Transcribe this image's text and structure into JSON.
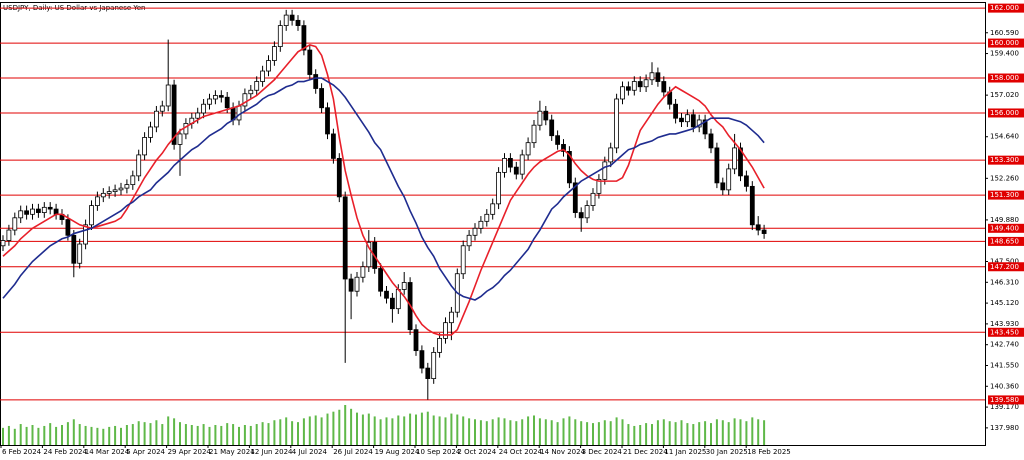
{
  "chart_data": {
    "type": "candlestick",
    "title": "USDJPY, Daily: US Dollar vs Japanese Yen",
    "x_labels": [
      "6 Feb 2024",
      "24 Feb 2024",
      "14 Mar 2024",
      "5 Apr 2024",
      "29 Apr 2024",
      "21 May 2024",
      "12 Jun 2024",
      "4 Jul 2024",
      "26 Jul 2024",
      "19 Aug 2024",
      "10 Sep 2024",
      "2 Oct 2024",
      "24 Oct 2024",
      "14 Nov 2024",
      "3 Dec 2024",
      "21 Dec 2024",
      "11 Jan 2025",
      "30 Jan 2025",
      "18 Feb 2025"
    ],
    "open": [
      148.4,
      148.7,
      149.3,
      150.0,
      150.4,
      150.2,
      150.5,
      150.3,
      150.6,
      150.5,
      150.2,
      149.9,
      149.0,
      147.4,
      148.5,
      149.6,
      150.7,
      151.2,
      151.4,
      151.5,
      151.6,
      151.7,
      151.9,
      152.4,
      153.6,
      154.6,
      155.2,
      156.1,
      156.4,
      157.6,
      154.2,
      154.8,
      155.4,
      155.7,
      156.0,
      156.5,
      156.8,
      157.0,
      156.9,
      156.3,
      155.6,
      156.4,
      157.1,
      157.3,
      157.8,
      158.4,
      159.0,
      159.8,
      161.0,
      161.6,
      161.3,
      161.0,
      159.6,
      158.2,
      157.4,
      156.3,
      154.8,
      153.4,
      151.2,
      146.5,
      145.8,
      146.6,
      147.2,
      148.6,
      147.1,
      145.8,
      145.4,
      144.8,
      145.9,
      146.3,
      143.6,
      142.4,
      141.4,
      140.8,
      142.3,
      143.1,
      144.0,
      144.6,
      146.8,
      148.4,
      149.0,
      149.4,
      149.8,
      150.2,
      150.8,
      152.6,
      153.4,
      152.9,
      152.5,
      153.6,
      154.3,
      155.3,
      156.1,
      155.6,
      154.7,
      154.2,
      153.8,
      152.0,
      150.3,
      150.0,
      150.7,
      151.4,
      152.2,
      153.2,
      154.0,
      156.8,
      157.5,
      157.3,
      157.8,
      157.5,
      157.9,
      158.3,
      157.8,
      157.2,
      156.5,
      155.7,
      155.5,
      155.9,
      155.2,
      155.6,
      154.8,
      154.0,
      152.0,
      151.6,
      152.8,
      154.0,
      152.4,
      151.8,
      149.6,
      149.3
    ],
    "high": [
      149.0,
      149.6,
      150.3,
      150.7,
      150.7,
      150.8,
      150.8,
      150.9,
      150.9,
      150.8,
      150.5,
      150.2,
      149.3,
      148.8,
      149.9,
      151.0,
      151.5,
      151.7,
      151.8,
      151.9,
      152.0,
      152.2,
      152.7,
      153.9,
      154.9,
      155.5,
      156.4,
      156.7,
      160.2,
      157.9,
      155.1,
      155.7,
      156.0,
      156.3,
      156.8,
      157.1,
      157.3,
      157.3,
      157.2,
      156.6,
      156.7,
      157.4,
      157.6,
      158.1,
      158.7,
      159.3,
      160.1,
      161.3,
      161.9,
      161.9,
      161.6,
      161.3,
      159.9,
      158.5,
      157.7,
      156.6,
      155.1,
      153.7,
      151.5,
      146.8,
      146.9,
      147.5,
      149.3,
      148.9,
      147.4,
      146.1,
      145.7,
      146.2,
      146.9,
      146.6,
      143.9,
      142.7,
      141.7,
      142.6,
      143.4,
      144.3,
      144.9,
      147.1,
      148.7,
      149.3,
      149.7,
      150.1,
      150.5,
      151.1,
      152.9,
      153.7,
      153.7,
      153.2,
      153.9,
      154.6,
      155.6,
      156.7,
      156.4,
      155.9,
      155.0,
      154.5,
      154.1,
      152.3,
      150.6,
      151.0,
      151.7,
      152.5,
      153.5,
      154.3,
      157.1,
      157.8,
      157.8,
      158.1,
      158.1,
      158.2,
      158.9,
      158.6,
      158.1,
      157.5,
      156.8,
      156.0,
      156.2,
      156.2,
      155.9,
      155.9,
      155.1,
      154.3,
      152.3,
      153.1,
      154.8,
      154.3,
      152.7,
      152.1,
      150.1,
      149.6
    ],
    "low": [
      148.1,
      148.4,
      149.0,
      149.7,
      149.9,
      149.9,
      150.0,
      150.0,
      150.2,
      149.9,
      149.6,
      148.7,
      146.6,
      147.1,
      148.2,
      149.3,
      150.4,
      150.9,
      151.1,
      151.2,
      151.3,
      151.4,
      151.6,
      152.1,
      153.3,
      154.3,
      154.9,
      155.8,
      156.1,
      153.9,
      152.4,
      154.5,
      155.1,
      155.4,
      155.7,
      156.2,
      156.5,
      156.6,
      156.0,
      155.3,
      155.3,
      156.1,
      156.8,
      157.0,
      157.5,
      158.1,
      158.7,
      159.5,
      160.7,
      161.0,
      160.7,
      159.3,
      157.9,
      157.1,
      156.0,
      154.5,
      153.1,
      150.9,
      141.7,
      144.2,
      145.5,
      146.3,
      146.9,
      146.8,
      145.5,
      145.1,
      144.0,
      144.5,
      145.6,
      143.3,
      142.1,
      141.1,
      139.6,
      140.5,
      142.0,
      142.8,
      143.0,
      144.3,
      146.5,
      148.1,
      148.7,
      149.1,
      149.5,
      149.9,
      150.5,
      152.3,
      152.6,
      152.2,
      152.2,
      153.3,
      154.0,
      155.0,
      155.3,
      154.4,
      153.9,
      153.5,
      151.7,
      150.0,
      149.2,
      149.7,
      150.4,
      151.1,
      151.9,
      152.9,
      153.7,
      156.5,
      157.0,
      157.0,
      157.2,
      157.2,
      157.6,
      157.5,
      156.9,
      156.2,
      155.4,
      155.2,
      155.2,
      154.9,
      154.9,
      154.5,
      153.7,
      151.7,
      151.3,
      151.3,
      152.5,
      152.1,
      151.5,
      149.3,
      149.0,
      148.8
    ],
    "close": [
      148.7,
      149.3,
      150.0,
      150.4,
      150.2,
      150.5,
      150.3,
      150.6,
      150.5,
      150.2,
      149.9,
      149.0,
      147.4,
      148.5,
      149.6,
      150.7,
      151.2,
      151.4,
      151.5,
      151.6,
      151.7,
      151.9,
      152.4,
      153.6,
      154.6,
      155.2,
      156.1,
      156.4,
      157.6,
      154.2,
      154.8,
      155.4,
      155.7,
      156.0,
      156.5,
      156.8,
      157.0,
      156.9,
      156.3,
      155.6,
      156.4,
      157.1,
      157.3,
      157.8,
      158.4,
      159.0,
      159.8,
      161.0,
      161.6,
      161.3,
      161.0,
      159.6,
      158.2,
      157.4,
      156.3,
      154.8,
      153.4,
      151.2,
      146.5,
      145.8,
      146.6,
      147.2,
      148.6,
      147.1,
      145.8,
      145.4,
      144.8,
      145.9,
      146.3,
      143.6,
      142.4,
      141.4,
      140.8,
      142.3,
      143.1,
      144.0,
      144.6,
      146.8,
      148.4,
      149.0,
      149.4,
      149.8,
      150.2,
      150.8,
      152.6,
      153.4,
      152.9,
      152.5,
      153.6,
      154.3,
      155.3,
      156.1,
      155.6,
      154.7,
      154.2,
      153.8,
      152.0,
      150.3,
      150.0,
      150.7,
      151.4,
      152.2,
      153.2,
      154.0,
      156.8,
      157.5,
      157.3,
      157.8,
      157.5,
      157.9,
      158.3,
      157.8,
      157.2,
      156.5,
      155.7,
      155.5,
      155.9,
      155.2,
      155.6,
      154.8,
      154.0,
      152.0,
      151.6,
      152.8,
      154.0,
      152.4,
      151.8,
      149.6,
      149.3,
      149.1
    ],
    "up_color": "#ffffff",
    "down_color": "#000000",
    "lines": [
      {
        "color": "#e8202a",
        "values": [
          147.8,
          148.1,
          148.4,
          148.8,
          149.1,
          149.4,
          149.6,
          149.8,
          150.0,
          150.2,
          150.2,
          150.0,
          149.8,
          149.6,
          149.5,
          149.4,
          149.5,
          149.6,
          149.7,
          149.8,
          150.0,
          150.5,
          151.1,
          151.7,
          152.3,
          152.8,
          153.3,
          153.7,
          154.2,
          154.6,
          155.0,
          155.2,
          155.4,
          155.6,
          155.8,
          155.9,
          156.0,
          156.1,
          156.2,
          156.3,
          156.4,
          156.6,
          156.8,
          157.0,
          157.3,
          157.6,
          157.9,
          158.3,
          158.7,
          159.1,
          159.5,
          159.7,
          159.9,
          159.8,
          159.3,
          158.2,
          156.8,
          154.6,
          152.7,
          151.3,
          150.0,
          149.0,
          148.3,
          147.8,
          147.3,
          146.8,
          146.3,
          145.9,
          145.5,
          145.0,
          144.4,
          143.9,
          143.6,
          143.4,
          143.3,
          143.3,
          143.3,
          143.6,
          144.4,
          145.2,
          146.1,
          147.0,
          147.8,
          148.6,
          149.4,
          150.2,
          151.0,
          151.5,
          152.0,
          152.5,
          152.9,
          153.2,
          153.4,
          153.6,
          153.8,
          153.9,
          153.6,
          153.1,
          152.7,
          152.4,
          152.2,
          152.1,
          152.1,
          152.1,
          152.1,
          152.3,
          153.0,
          154.0,
          155.0,
          155.5,
          156.0,
          156.5,
          156.9,
          157.2,
          157.5,
          157.3,
          157.1,
          156.9,
          156.7,
          156.4,
          155.9,
          155.5,
          155.2,
          154.7,
          154.3,
          153.9,
          153.4,
          152.9,
          152.3,
          151.7
        ]
      },
      {
        "color": "#1f2c8f",
        "values": [
          145.4,
          145.8,
          146.2,
          146.7,
          147.1,
          147.5,
          147.8,
          148.1,
          148.4,
          148.6,
          148.8,
          148.9,
          149.1,
          149.2,
          149.3,
          149.4,
          149.6,
          149.8,
          150.0,
          150.2,
          150.4,
          150.7,
          150.9,
          151.2,
          151.4,
          151.6,
          152.0,
          152.3,
          152.6,
          153.0,
          153.3,
          153.6,
          153.9,
          154.1,
          154.4,
          154.7,
          154.9,
          155.1,
          155.4,
          155.6,
          155.9,
          156.1,
          156.3,
          156.5,
          156.8,
          157.0,
          157.1,
          157.3,
          157.5,
          157.6,
          157.8,
          157.8,
          157.9,
          158.0,
          158.0,
          157.8,
          157.6,
          157.3,
          156.9,
          156.4,
          155.9,
          155.4,
          154.9,
          154.3,
          153.9,
          153.2,
          152.5,
          151.8,
          151.2,
          150.4,
          149.7,
          148.9,
          148.3,
          147.8,
          147.1,
          146.6,
          146.1,
          145.7,
          145.5,
          145.4,
          145.3,
          145.5,
          145.8,
          146.0,
          146.3,
          146.7,
          147.0,
          147.4,
          147.8,
          148.2,
          148.8,
          149.3,
          149.9,
          150.5,
          150.8,
          151.2,
          151.5,
          151.8,
          152.1,
          152.3,
          152.5,
          152.7,
          152.9,
          153.0,
          153.3,
          153.6,
          153.9,
          154.0,
          154.2,
          154.3,
          154.4,
          154.6,
          154.7,
          154.8,
          154.8,
          154.9,
          155.0,
          155.1,
          155.3,
          155.5,
          155.7,
          155.7,
          155.7,
          155.7,
          155.6,
          155.5,
          155.3,
          155.0,
          154.7,
          154.3
        ]
      }
    ],
    "volume": {
      "color": "#5fb848",
      "values": [
        18,
        20,
        17,
        22,
        19,
        21,
        18,
        20,
        23,
        19,
        21,
        24,
        27,
        22,
        20,
        19,
        18,
        17,
        19,
        20,
        18,
        21,
        22,
        25,
        24,
        23,
        26,
        22,
        30,
        28,
        24,
        22,
        21,
        20,
        22,
        19,
        21,
        20,
        23,
        22,
        19,
        21,
        20,
        22,
        24,
        23,
        26,
        27,
        29,
        25,
        24,
        28,
        30,
        31,
        29,
        33,
        35,
        37,
        42,
        38,
        34,
        32,
        33,
        30,
        27,
        29,
        28,
        31,
        30,
        33,
        32,
        34,
        35,
        31,
        30,
        29,
        33,
        32,
        30,
        28,
        27,
        26,
        25,
        27,
        29,
        28,
        26,
        25,
        27,
        30,
        31,
        28,
        27,
        26,
        24,
        28,
        30,
        27,
        25,
        24,
        23,
        24,
        26,
        25,
        29,
        27,
        22,
        20,
        21,
        23,
        22,
        26,
        27,
        25,
        24,
        26,
        23,
        22,
        24,
        25,
        23,
        27,
        26,
        24,
        28,
        27,
        25,
        29,
        27,
        26
      ]
    },
    "levels": {
      "color": "#e00000",
      "values": [
        {
          "value": 162,
          "label": "162.000"
        },
        {
          "value": 160,
          "label": "160.000"
        },
        {
          "value": 158,
          "label": "158.000"
        },
        {
          "value": 156,
          "label": "156.000"
        },
        {
          "value": 153.3,
          "label": "153.300"
        },
        {
          "value": 151.3,
          "label": "151.300"
        },
        {
          "value": 149.4,
          "label": "149.400"
        },
        {
          "value": 148.65,
          "label": "148.650"
        },
        {
          "value": 147.2,
          "label": "147.200"
        },
        {
          "value": 143.45,
          "label": "143.450"
        },
        {
          "value": 139.58,
          "label": "139.580"
        }
      ]
    },
    "ylim": [
      137,
      162.35
    ],
    "yticks": [
      {
        "value": 160.59,
        "label": "160.590"
      },
      {
        "value": 159.4,
        "label": "159.400"
      },
      {
        "value": 157.02,
        "label": "157.020"
      },
      {
        "value": 154.64,
        "label": "154.640"
      },
      {
        "value": 152.26,
        "label": "152.260"
      },
      {
        "value": 149.88,
        "label": "149.880"
      },
      {
        "value": 147.5,
        "label": "147.500"
      },
      {
        "value": 146.31,
        "label": "146.310"
      },
      {
        "value": 145.12,
        "label": "145.120"
      },
      {
        "value": 143.93,
        "label": "143.930"
      },
      {
        "value": 142.74,
        "label": "142.740"
      },
      {
        "value": 141.55,
        "label": "141.550"
      },
      {
        "value": 140.36,
        "label": "140.360"
      },
      {
        "value": 139.17,
        "label": "139.170"
      },
      {
        "value": 137.98,
        "label": "137.980"
      }
    ]
  }
}
